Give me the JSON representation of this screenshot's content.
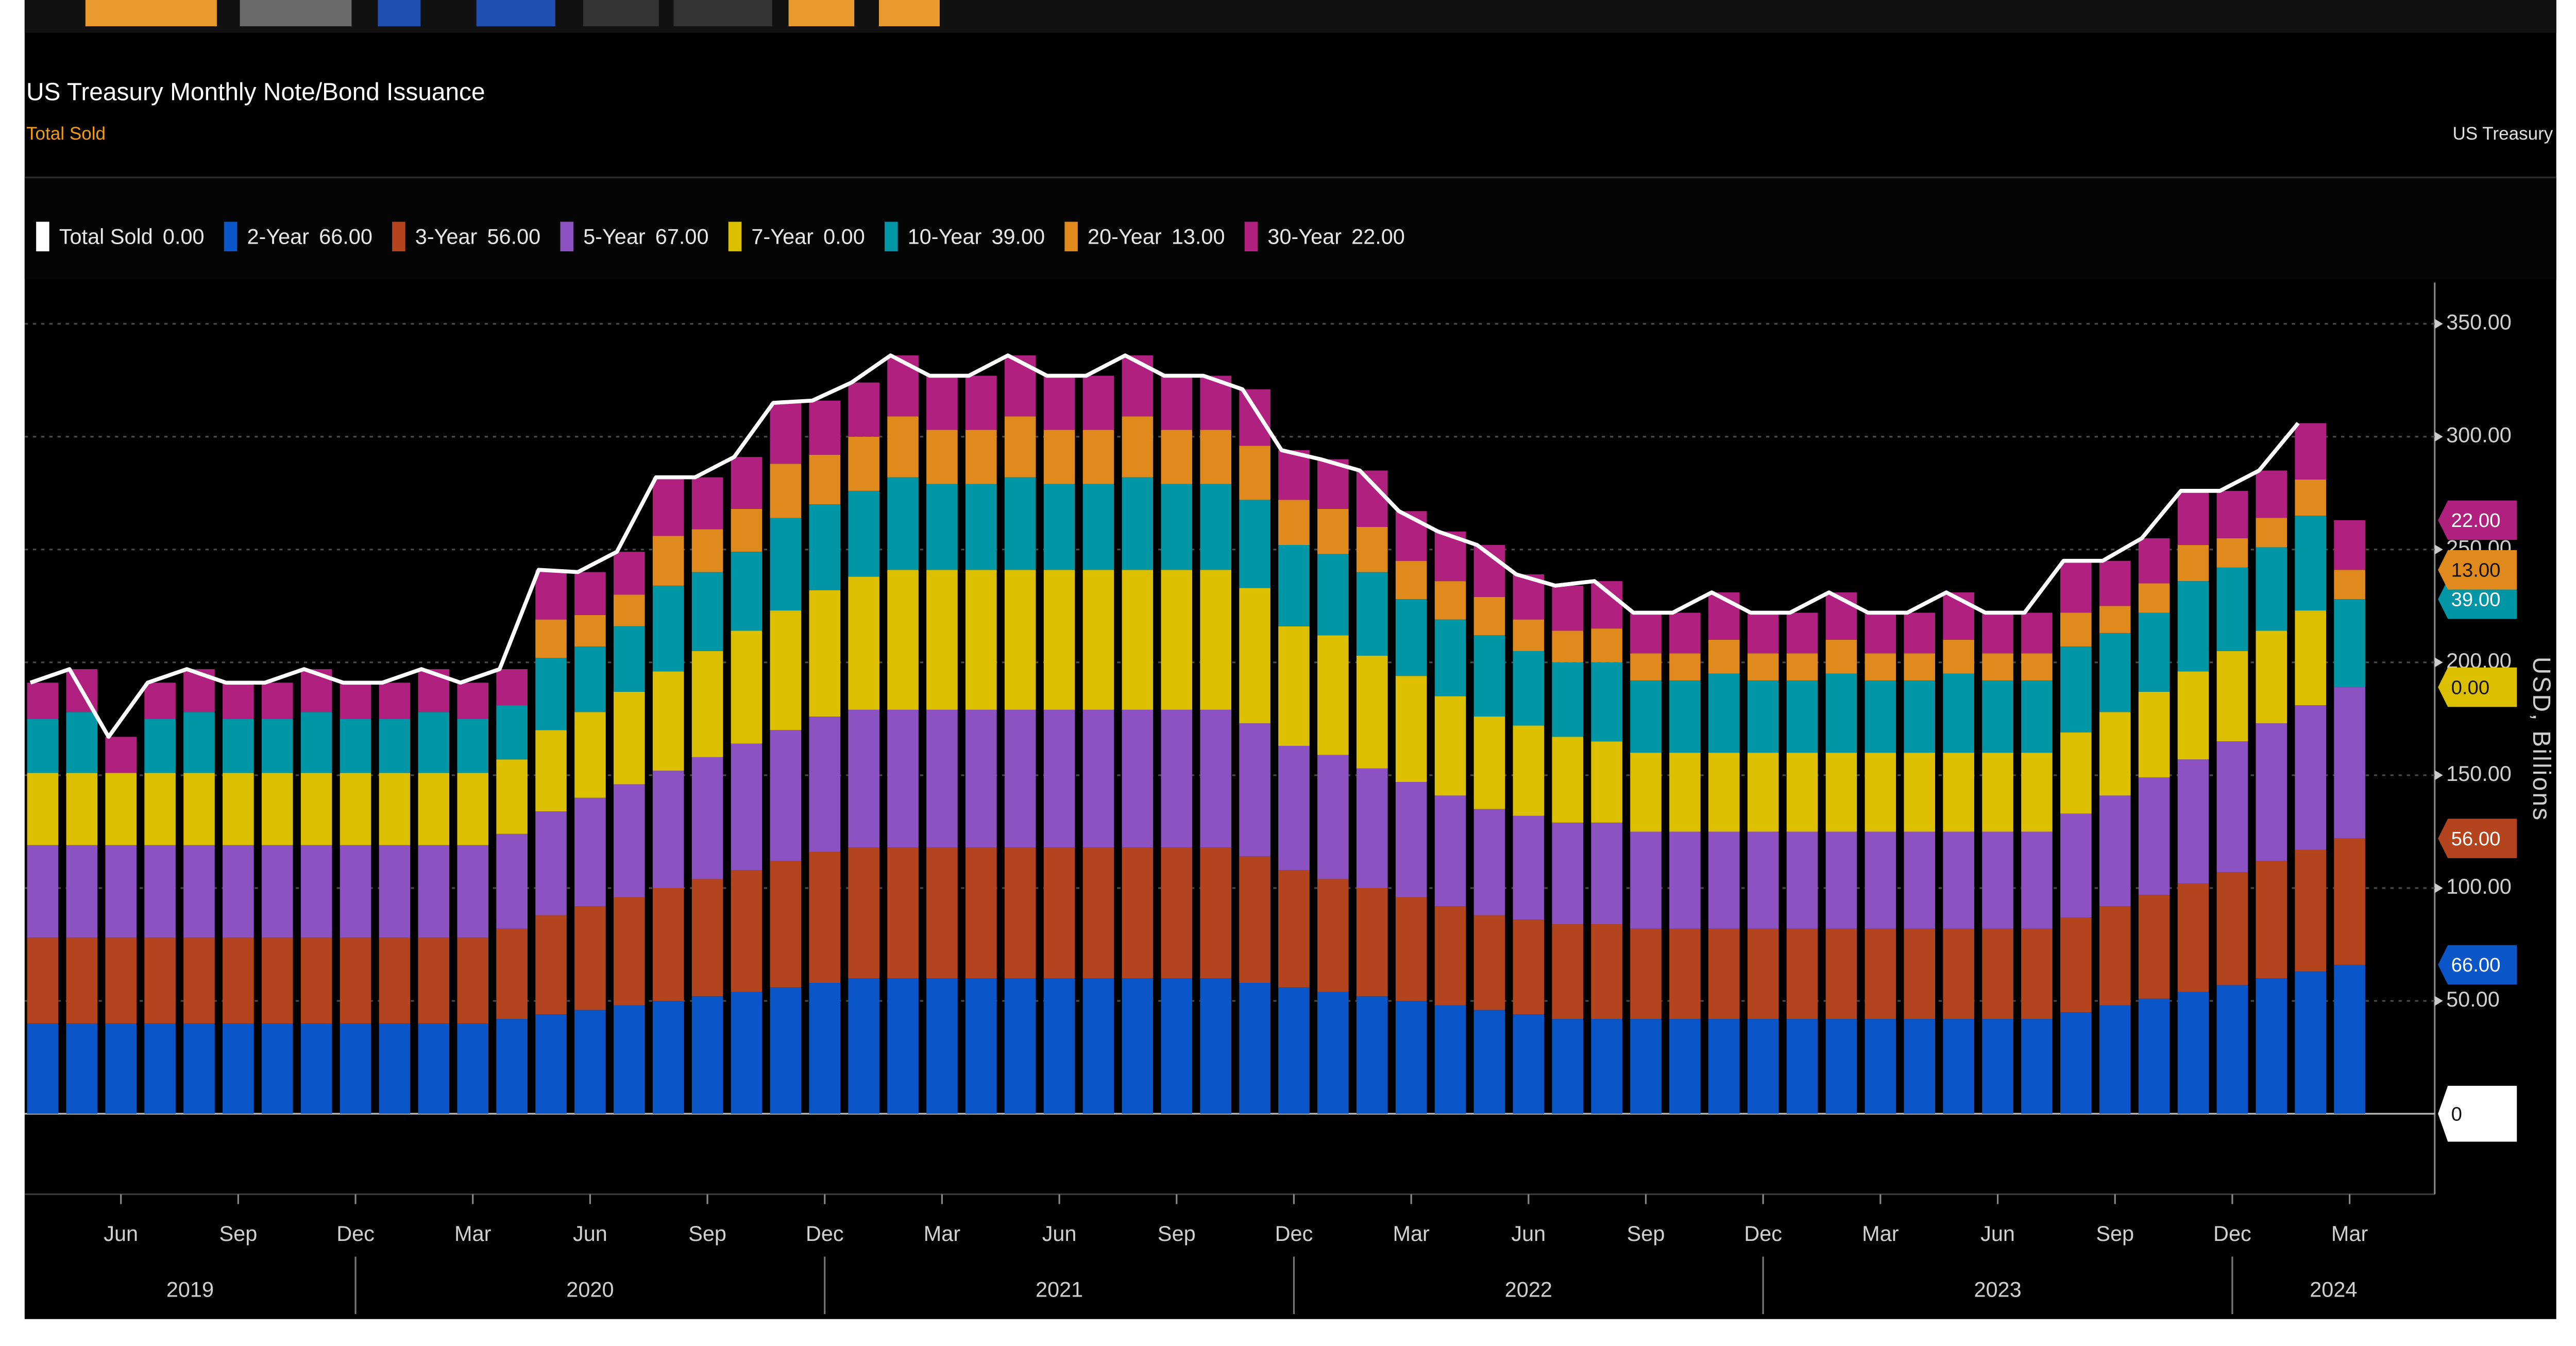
{
  "chart_data": {
    "type": "bar",
    "stacked": true,
    "title": "US Treasury Monthly Note/Bond Issuance",
    "subtitle": "Total Sold",
    "source": "US Treasury",
    "y_label": "USD, Billions",
    "ylim": [
      -34.2,
      368.3
    ],
    "yticks": [
      {
        "value": 50,
        "label": "50.00"
      },
      {
        "value": 100,
        "label": "100.00"
      },
      {
        "value": 150,
        "label": "150.00"
      },
      {
        "value": 200,
        "label": "200.00"
      },
      {
        "value": 250,
        "label": "250.00"
      },
      {
        "value": 300,
        "label": "300.00"
      },
      {
        "value": 350,
        "label": "350.00"
      }
    ],
    "grid": true,
    "categories": [
      null,
      null,
      "Jun",
      null,
      null,
      "Sep",
      null,
      null,
      "Dec",
      null,
      null,
      "Mar",
      null,
      null,
      "Jun",
      null,
      null,
      "Sep",
      null,
      null,
      "Dec",
      null,
      null,
      "Mar",
      null,
      null,
      "Jun",
      null,
      null,
      "Sep",
      null,
      null,
      "Dec",
      null,
      null,
      "Mar",
      null,
      null,
      "Jun",
      null,
      null,
      "Sep",
      null,
      null,
      "Dec",
      null,
      null,
      "Mar",
      null,
      null,
      "Jun",
      null,
      null,
      "Sep",
      null,
      null,
      "Dec",
      null,
      null,
      "Mar"
    ],
    "years": [
      {
        "label": "2019",
        "months": 9
      },
      {
        "label": "2020",
        "months": 12
      },
      {
        "label": "2021",
        "months": 12
      },
      {
        "label": "2022",
        "months": 12
      },
      {
        "label": "2023",
        "months": 12
      },
      {
        "label": "2024",
        "months": 3
      }
    ],
    "series": [
      {
        "name": "Total Sold",
        "type": "line",
        "color": "#ffffff",
        "legend_value": "0.00",
        "end_label": {
          "value": 0,
          "label": "0"
        },
        "values": [
          191,
          197,
          167,
          191,
          197,
          191,
          191,
          197,
          191,
          191,
          197,
          191,
          197,
          241,
          240,
          249,
          282,
          282,
          291,
          315,
          316,
          324,
          336,
          327,
          327,
          336,
          327,
          327,
          336,
          327,
          327,
          321,
          294,
          290,
          285,
          267,
          258,
          252,
          239,
          234,
          236,
          222,
          222,
          231,
          222,
          222,
          231,
          222,
          222,
          231,
          222,
          222,
          245,
          245,
          255,
          276,
          276,
          285,
          306,
          null
        ]
      },
      {
        "name": "2-Year",
        "type": "bar",
        "color": "#0a55c8",
        "legend_value": "66.00",
        "axis_tag": true,
        "values": [
          40,
          40,
          40,
          40,
          40,
          40,
          40,
          40,
          40,
          40,
          40,
          40,
          42,
          44,
          46,
          48,
          50,
          52,
          54,
          56,
          58,
          60,
          60,
          60,
          60,
          60,
          60,
          60,
          60,
          60,
          60,
          58,
          56,
          54,
          52,
          50,
          48,
          46,
          44,
          42,
          42,
          42,
          42,
          42,
          42,
          42,
          42,
          42,
          42,
          42,
          42,
          42,
          45,
          48,
          51,
          54,
          57,
          60,
          63,
          66
        ]
      },
      {
        "name": "3-Year",
        "type": "bar",
        "color": "#b4441d",
        "legend_value": "56.00",
        "axis_tag": true,
        "values": [
          38,
          38,
          38,
          38,
          38,
          38,
          38,
          38,
          38,
          38,
          38,
          38,
          40,
          44,
          46,
          48,
          50,
          52,
          54,
          56,
          58,
          58,
          58,
          58,
          58,
          58,
          58,
          58,
          58,
          58,
          58,
          56,
          52,
          50,
          48,
          46,
          44,
          42,
          42,
          42,
          42,
          40,
          40,
          40,
          40,
          40,
          40,
          40,
          40,
          40,
          40,
          40,
          42,
          44,
          46,
          48,
          50,
          52,
          54,
          56
        ]
      },
      {
        "name": "5-Year",
        "type": "bar",
        "color": "#8c52c2",
        "legend_value": "67.00",
        "axis_tag": false,
        "values": [
          41,
          41,
          41,
          41,
          41,
          41,
          41,
          41,
          41,
          41,
          41,
          41,
          42,
          46,
          48,
          50,
          52,
          54,
          56,
          58,
          60,
          61,
          61,
          61,
          61,
          61,
          61,
          61,
          61,
          61,
          61,
          59,
          55,
          55,
          53,
          51,
          49,
          47,
          46,
          45,
          45,
          43,
          43,
          43,
          43,
          43,
          43,
          43,
          43,
          43,
          43,
          43,
          46,
          49,
          52,
          55,
          58,
          61,
          64,
          67
        ]
      },
      {
        "name": "7-Year",
        "type": "bar",
        "color": "#dcc000",
        "legend_value": "0.00",
        "axis_tag": true,
        "values": [
          32,
          32,
          32,
          32,
          32,
          32,
          32,
          32,
          32,
          32,
          32,
          32,
          33,
          36,
          38,
          41,
          44,
          47,
          50,
          53,
          56,
          59,
          62,
          62,
          62,
          62,
          62,
          62,
          62,
          62,
          62,
          60,
          53,
          53,
          50,
          47,
          44,
          41,
          40,
          38,
          36,
          35,
          35,
          35,
          35,
          35,
          35,
          35,
          35,
          35,
          35,
          35,
          36,
          37,
          38,
          39,
          40,
          41,
          42,
          0
        ]
      },
      {
        "name": "10-Year",
        "type": "bar",
        "color": "#0096a6",
        "legend_value": "39.00",
        "axis_tag": true,
        "values": [
          24,
          27,
          0,
          24,
          27,
          24,
          24,
          27,
          24,
          24,
          27,
          24,
          24,
          32,
          29,
          29,
          38,
          35,
          35,
          41,
          38,
          38,
          41,
          38,
          38,
          41,
          38,
          38,
          41,
          38,
          38,
          39,
          36,
          36,
          37,
          34,
          34,
          36,
          33,
          33,
          35,
          32,
          32,
          35,
          32,
          32,
          35,
          32,
          32,
          35,
          32,
          32,
          38,
          35,
          35,
          40,
          37,
          37,
          42,
          39
        ]
      },
      {
        "name": "20-Year",
        "type": "bar",
        "color": "#e08a1e",
        "legend_value": "13.00",
        "axis_tag": true,
        "values": [
          0,
          0,
          0,
          0,
          0,
          0,
          0,
          0,
          0,
          0,
          0,
          0,
          0,
          17,
          14,
          14,
          22,
          19,
          19,
          24,
          22,
          24,
          27,
          24,
          24,
          27,
          24,
          24,
          27,
          24,
          24,
          24,
          20,
          20,
          20,
          17,
          17,
          17,
          14,
          14,
          15,
          12,
          12,
          15,
          12,
          12,
          15,
          12,
          12,
          15,
          12,
          12,
          15,
          12,
          13,
          16,
          13,
          13,
          16,
          13
        ]
      },
      {
        "name": "30-Year",
        "type": "bar",
        "color": "#b0217f",
        "legend_value": "22.00",
        "axis_tag": true,
        "values": [
          16,
          19,
          16,
          16,
          19,
          16,
          16,
          19,
          16,
          16,
          19,
          16,
          16,
          22,
          19,
          19,
          26,
          23,
          23,
          27,
          24,
          24,
          27,
          24,
          24,
          27,
          24,
          24,
          27,
          24,
          24,
          25,
          22,
          22,
          25,
          22,
          22,
          23,
          20,
          20,
          21,
          18,
          18,
          21,
          18,
          18,
          21,
          18,
          18,
          21,
          18,
          18,
          23,
          20,
          20,
          24,
          21,
          21,
          25,
          22
        ]
      }
    ]
  }
}
